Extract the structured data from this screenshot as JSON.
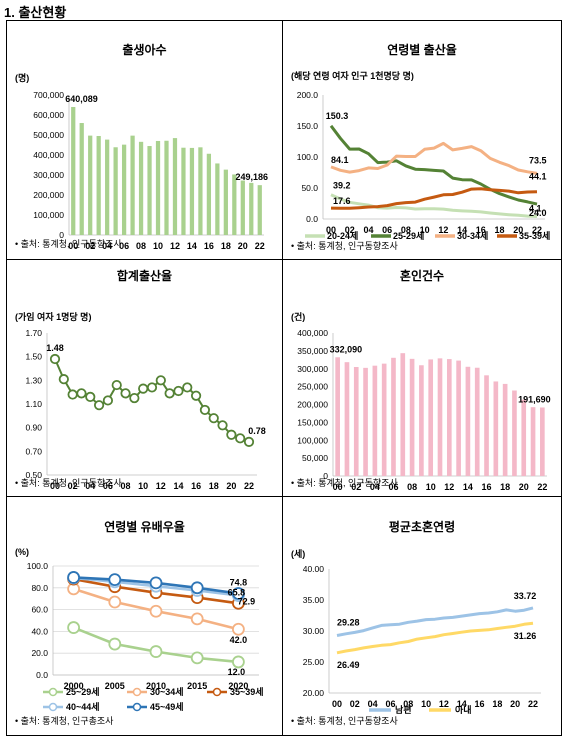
{
  "heading": "1. 출산현황",
  "source_births": "• 출처: 통계청, 인구동향조사",
  "source_census": "• 출처: 통계청, 인구총조사",
  "colors": {
    "green_bar": "#a9d18e",
    "pink_bar": "#f4b8c8",
    "dark_green": "#548235",
    "light_green": "#a9d18e",
    "orange_light": "#f4b183",
    "orange_dark": "#c55a11",
    "blue_dark": "#2e75b6",
    "blue_light": "#9dc3e6",
    "yellow": "#ffd966"
  },
  "chart_data": [
    {
      "id": "births",
      "type": "bar",
      "title": "출생아수",
      "unit": "(명)",
      "x": [
        "00",
        "01",
        "02",
        "03",
        "04",
        "05",
        "06",
        "07",
        "08",
        "09",
        "10",
        "11",
        "12",
        "13",
        "14",
        "15",
        "16",
        "17",
        "18",
        "19",
        "20",
        "21",
        "22"
      ],
      "xticks": [
        "00",
        "02",
        "04",
        "06",
        "08",
        "10",
        "12",
        "14",
        "16",
        "18",
        "20",
        "22"
      ],
      "values": [
        640089,
        559934,
        496911,
        495036,
        476958,
        438707,
        451759,
        496822,
        465892,
        444849,
        470171,
        471265,
        484550,
        436455,
        435435,
        438420,
        406243,
        357771,
        326822,
        302676,
        272337,
        260562,
        249186
      ],
      "ylim": [
        0,
        700000
      ],
      "yticks": [
        "0",
        "100,000",
        "200,000",
        "300,000",
        "400,000",
        "500,000",
        "600,000",
        "700,000"
      ],
      "labels": [
        {
          "index": 0,
          "text": "640,089"
        },
        {
          "index": 22,
          "text": "249,186"
        }
      ]
    },
    {
      "id": "age_fertility",
      "type": "line",
      "title": "연령별 출산율",
      "unit": "(해당 연령 여자 인구 1천명당 명)",
      "x": [
        "00",
        "01",
        "02",
        "03",
        "04",
        "05",
        "06",
        "07",
        "08",
        "09",
        "10",
        "11",
        "12",
        "13",
        "14",
        "15",
        "16",
        "17",
        "18",
        "19",
        "20",
        "21",
        "22"
      ],
      "xticks": [
        "00",
        "02",
        "04",
        "06",
        "08",
        "10",
        "12",
        "14",
        "16",
        "18",
        "20",
        "22"
      ],
      "ylim": [
        0,
        200
      ],
      "yticks": [
        "0.0",
        "50.0",
        "100.0",
        "150.0",
        "200.0"
      ],
      "series": [
        {
          "name": "20-24세",
          "color": "#c5e0b4",
          "values": [
            39.2,
            32.3,
            27.0,
            24.5,
            22.4,
            18.2,
            17.6,
            18.5,
            17.9,
            16.1,
            16.5,
            16.4,
            16.0,
            14.0,
            13.1,
            12.5,
            11.5,
            9.6,
            8.2,
            7.0,
            5.9,
            4.7,
            4.1
          ]
        },
        {
          "name": "25-29세",
          "color": "#548235",
          "values": [
            150.3,
            130.1,
            112.8,
            112.9,
            105.4,
            91.0,
            91.7,
            93.9,
            85.6,
            80.4,
            79.7,
            78.4,
            77.4,
            65.9,
            63.4,
            63.1,
            56.4,
            47.9,
            41.0,
            35.7,
            30.6,
            27.5,
            24.0
          ]
        },
        {
          "name": "30-34세",
          "color": "#f4b183",
          "values": [
            84.1,
            78.6,
            75.7,
            78.1,
            82.4,
            81.5,
            87.1,
            101.4,
            100.8,
            100.8,
            112.4,
            114.4,
            121.9,
            111.4,
            113.8,
            116.7,
            110.1,
            97.7,
            91.4,
            86.2,
            79.0,
            76.1,
            73.5
          ]
        },
        {
          "name": "35-39세",
          "color": "#c55a11",
          "values": [
            17.6,
            17.3,
            17.4,
            18.2,
            19.4,
            20.0,
            21.6,
            24.9,
            26.5,
            27.3,
            32.0,
            35.4,
            39.0,
            39.5,
            43.2,
            48.3,
            48.7,
            47.2,
            46.1,
            45.0,
            42.3,
            43.5,
            44.1
          ]
        }
      ],
      "labels": [
        {
          "series": 1,
          "index": 0,
          "text": "150.3"
        },
        {
          "series": 2,
          "index": 0,
          "text": "84.1"
        },
        {
          "series": 0,
          "index": 0,
          "text": "39.2"
        },
        {
          "series": 3,
          "index": 0,
          "text": "17.6"
        },
        {
          "series": 2,
          "index": 22,
          "text": "73.5"
        },
        {
          "series": 3,
          "index": 22,
          "text": "44.1"
        },
        {
          "series": 1,
          "index": 22,
          "text": "24.0"
        },
        {
          "series": 0,
          "index": 22,
          "text": "4.1"
        }
      ]
    },
    {
      "id": "tfr",
      "type": "line",
      "title": "합계출산율",
      "unit": "(가임 여자 1명당 명)",
      "x": [
        "00",
        "01",
        "02",
        "03",
        "04",
        "05",
        "06",
        "07",
        "08",
        "09",
        "10",
        "11",
        "12",
        "13",
        "14",
        "15",
        "16",
        "17",
        "18",
        "19",
        "20",
        "21",
        "22"
      ],
      "xticks": [
        "00",
        "02",
        "04",
        "06",
        "08",
        "10",
        "12",
        "14",
        "16",
        "18",
        "20",
        "22"
      ],
      "ylim": [
        0.5,
        1.7
      ],
      "yticks": [
        "0.50",
        "0.70",
        "0.90",
        "1.10",
        "1.30",
        "1.50",
        "1.70"
      ],
      "series": [
        {
          "name": "합계출산율",
          "color": "#548235",
          "values": [
            1.48,
            1.31,
            1.18,
            1.19,
            1.16,
            1.09,
            1.13,
            1.26,
            1.19,
            1.15,
            1.23,
            1.24,
            1.3,
            1.19,
            1.21,
            1.24,
            1.17,
            1.05,
            0.98,
            0.92,
            0.84,
            0.81,
            0.78
          ]
        }
      ],
      "labels": [
        {
          "series": 0,
          "index": 0,
          "text": "1.48"
        },
        {
          "series": 0,
          "index": 22,
          "text": "0.78"
        }
      ]
    },
    {
      "id": "marriages",
      "type": "bar",
      "title": "혼인건수",
      "unit": "(건)",
      "x": [
        "00",
        "01",
        "02",
        "03",
        "04",
        "05",
        "06",
        "07",
        "08",
        "09",
        "10",
        "11",
        "12",
        "13",
        "14",
        "15",
        "16",
        "17",
        "18",
        "19",
        "20",
        "21",
        "22"
      ],
      "xticks": [
        "00",
        "02",
        "04",
        "06",
        "08",
        "10",
        "12",
        "14",
        "16",
        "18",
        "20",
        "22"
      ],
      "values": [
        332090,
        318407,
        304877,
        302503,
        308598,
        314304,
        330634,
        343559,
        327715,
        309759,
        326104,
        329087,
        327073,
        322807,
        305507,
        302828,
        281635,
        264455,
        257622,
        239159,
        213502,
        192507,
        191690
      ],
      "ylim": [
        0,
        400000
      ],
      "yticks": [
        "0",
        "50,000",
        "100,000",
        "150,000",
        "200,000",
        "250,000",
        "300,000",
        "350,000",
        "400,000"
      ],
      "labels": [
        {
          "index": 0,
          "text": "332,090"
        },
        {
          "index": 22,
          "text": "191,690"
        }
      ]
    },
    {
      "id": "married_rate",
      "type": "line",
      "title": "연령별 유배우율",
      "unit": "(%)",
      "x": [
        "2000",
        "2005",
        "2010",
        "2015",
        "2020"
      ],
      "xticks": [
        "2000",
        "2005",
        "2010",
        "2015",
        "2020"
      ],
      "ylim": [
        0,
        100
      ],
      "yticks": [
        "0.0",
        "20.0",
        "40.0",
        "60.0",
        "80.0",
        "100.0"
      ],
      "series": [
        {
          "name": "25~29세",
          "color": "#a9d18e",
          "values": [
            43.5,
            28.4,
            21.5,
            15.7,
            12.0
          ]
        },
        {
          "name": "30~34세",
          "color": "#f4b183",
          "values": [
            79.0,
            67.0,
            58.5,
            51.5,
            42.0
          ]
        },
        {
          "name": "35~39세",
          "color": "#c55a11",
          "values": [
            88.0,
            81.0,
            75.5,
            71.0,
            65.8
          ]
        },
        {
          "name": "40~44세",
          "color": "#9dc3e6",
          "values": [
            89.0,
            85.5,
            81.5,
            77.5,
            72.9
          ]
        },
        {
          "name": "45~49세",
          "color": "#2e75b6",
          "values": [
            89.5,
            87.5,
            84.5,
            80.0,
            74.8
          ]
        }
      ],
      "labels": [
        {
          "series": 4,
          "index": 4,
          "text": "74.8"
        },
        {
          "series": 3,
          "index": 4,
          "text": "72.9"
        },
        {
          "series": 2,
          "index": 4,
          "text": "65.8"
        },
        {
          "series": 1,
          "index": 4,
          "text": "42.0"
        },
        {
          "series": 0,
          "index": 4,
          "text": "12.0"
        }
      ]
    },
    {
      "id": "marriage_age",
      "type": "line",
      "title": "평균초혼연령",
      "unit": "(세)",
      "x": [
        "00",
        "01",
        "02",
        "03",
        "04",
        "05",
        "06",
        "07",
        "08",
        "09",
        "10",
        "11",
        "12",
        "13",
        "14",
        "15",
        "16",
        "17",
        "18",
        "19",
        "20",
        "21",
        "22"
      ],
      "xticks": [
        "00",
        "02",
        "04",
        "06",
        "08",
        "10",
        "12",
        "14",
        "16",
        "18",
        "20",
        "22"
      ],
      "ylim": [
        20,
        40
      ],
      "yticks": [
        "20.00",
        "25.00",
        "30.00",
        "35.00",
        "40.00"
      ],
      "series": [
        {
          "name": "남편",
          "color": "#9dc3e6",
          "values": [
            29.28,
            29.55,
            29.77,
            30.06,
            30.5,
            30.9,
            31.0,
            31.09,
            31.4,
            31.6,
            31.84,
            31.9,
            32.1,
            32.2,
            32.4,
            32.6,
            32.8,
            32.9,
            33.1,
            33.4,
            33.2,
            33.35,
            33.72
          ]
        },
        {
          "name": "아내",
          "color": "#ffd966",
          "values": [
            26.49,
            26.77,
            27.0,
            27.27,
            27.5,
            27.7,
            27.8,
            28.1,
            28.3,
            28.7,
            28.9,
            29.1,
            29.4,
            29.6,
            29.8,
            30.0,
            30.1,
            30.2,
            30.4,
            30.6,
            30.78,
            31.08,
            31.26
          ]
        }
      ],
      "labels": [
        {
          "series": 0,
          "index": 0,
          "text": "29.28"
        },
        {
          "series": 1,
          "index": 0,
          "text": "26.49"
        },
        {
          "series": 0,
          "index": 22,
          "text": "33.72"
        },
        {
          "series": 1,
          "index": 22,
          "text": "31.26"
        }
      ]
    }
  ]
}
